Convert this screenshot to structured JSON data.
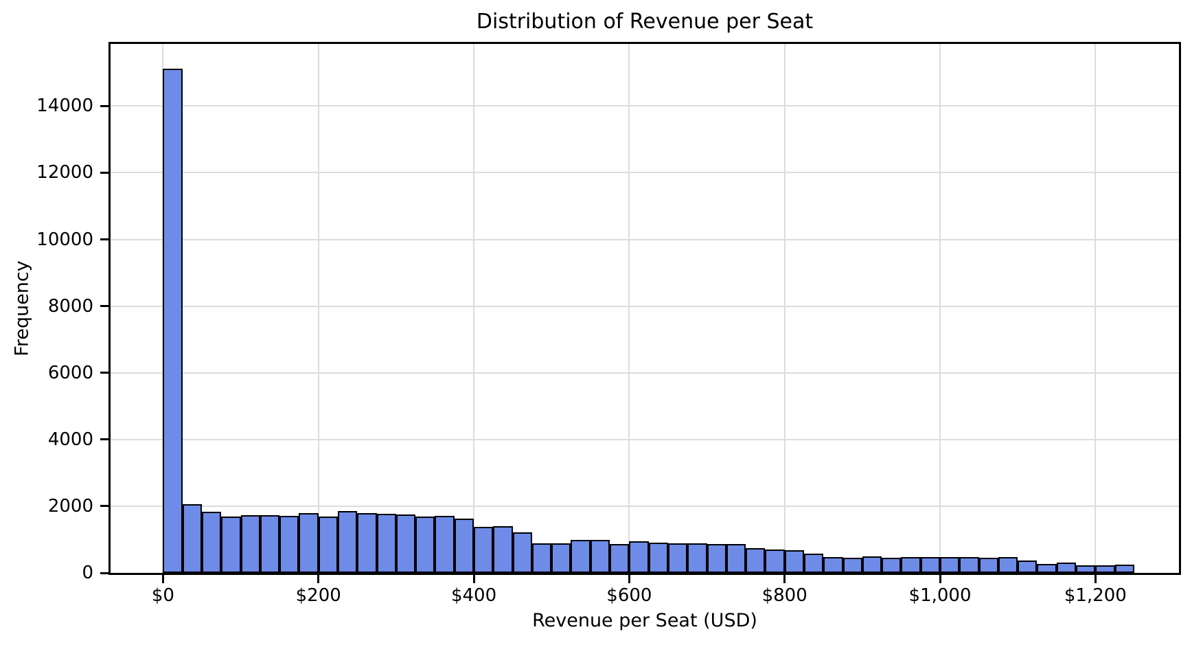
{
  "chart_data": {
    "type": "bar",
    "subtype": "histogram",
    "title": "Distribution of Revenue per Seat",
    "xlabel": "Revenue per Seat (USD)",
    "ylabel": "Frequency",
    "bin_start": 0,
    "bin_width": 25,
    "counts": [
      15120,
      2070,
      1840,
      1680,
      1730,
      1730,
      1700,
      1790,
      1680,
      1860,
      1790,
      1780,
      1750,
      1680,
      1720,
      1630,
      1390,
      1400,
      1220,
      890,
      880,
      990,
      990,
      860,
      950,
      910,
      880,
      890,
      860,
      860,
      740,
      710,
      670,
      570,
      480,
      450,
      490,
      455,
      465,
      465,
      480,
      480,
      455,
      465,
      370,
      265,
      310,
      235,
      235,
      255
    ],
    "xlim": [
      -67.5,
      1307.5
    ],
    "ylim": [
      0,
      15860
    ],
    "grid": true,
    "legend_position": "none",
    "x_ticks": [
      {
        "value": 0,
        "label": "$0"
      },
      {
        "value": 200,
        "label": "$200"
      },
      {
        "value": 400,
        "label": "$400"
      },
      {
        "value": 600,
        "label": "$600"
      },
      {
        "value": 800,
        "label": "$800"
      },
      {
        "value": 1000,
        "label": "$1,000"
      },
      {
        "value": 1200,
        "label": "$1,200"
      }
    ],
    "y_ticks": [
      {
        "value": 0,
        "label": "0"
      },
      {
        "value": 2000,
        "label": "2000"
      },
      {
        "value": 4000,
        "label": "4000"
      },
      {
        "value": 6000,
        "label": "6000"
      },
      {
        "value": 8000,
        "label": "8000"
      },
      {
        "value": 10000,
        "label": "10000"
      },
      {
        "value": 12000,
        "label": "12000"
      },
      {
        "value": 14000,
        "label": "14000"
      }
    ],
    "colors": {
      "bar_fill": "#6e8be8",
      "bar_edge": "#000000",
      "grid": "#dcdcdc",
      "spine": "#000000",
      "background": "#ffffff",
      "text": "#000000"
    }
  }
}
